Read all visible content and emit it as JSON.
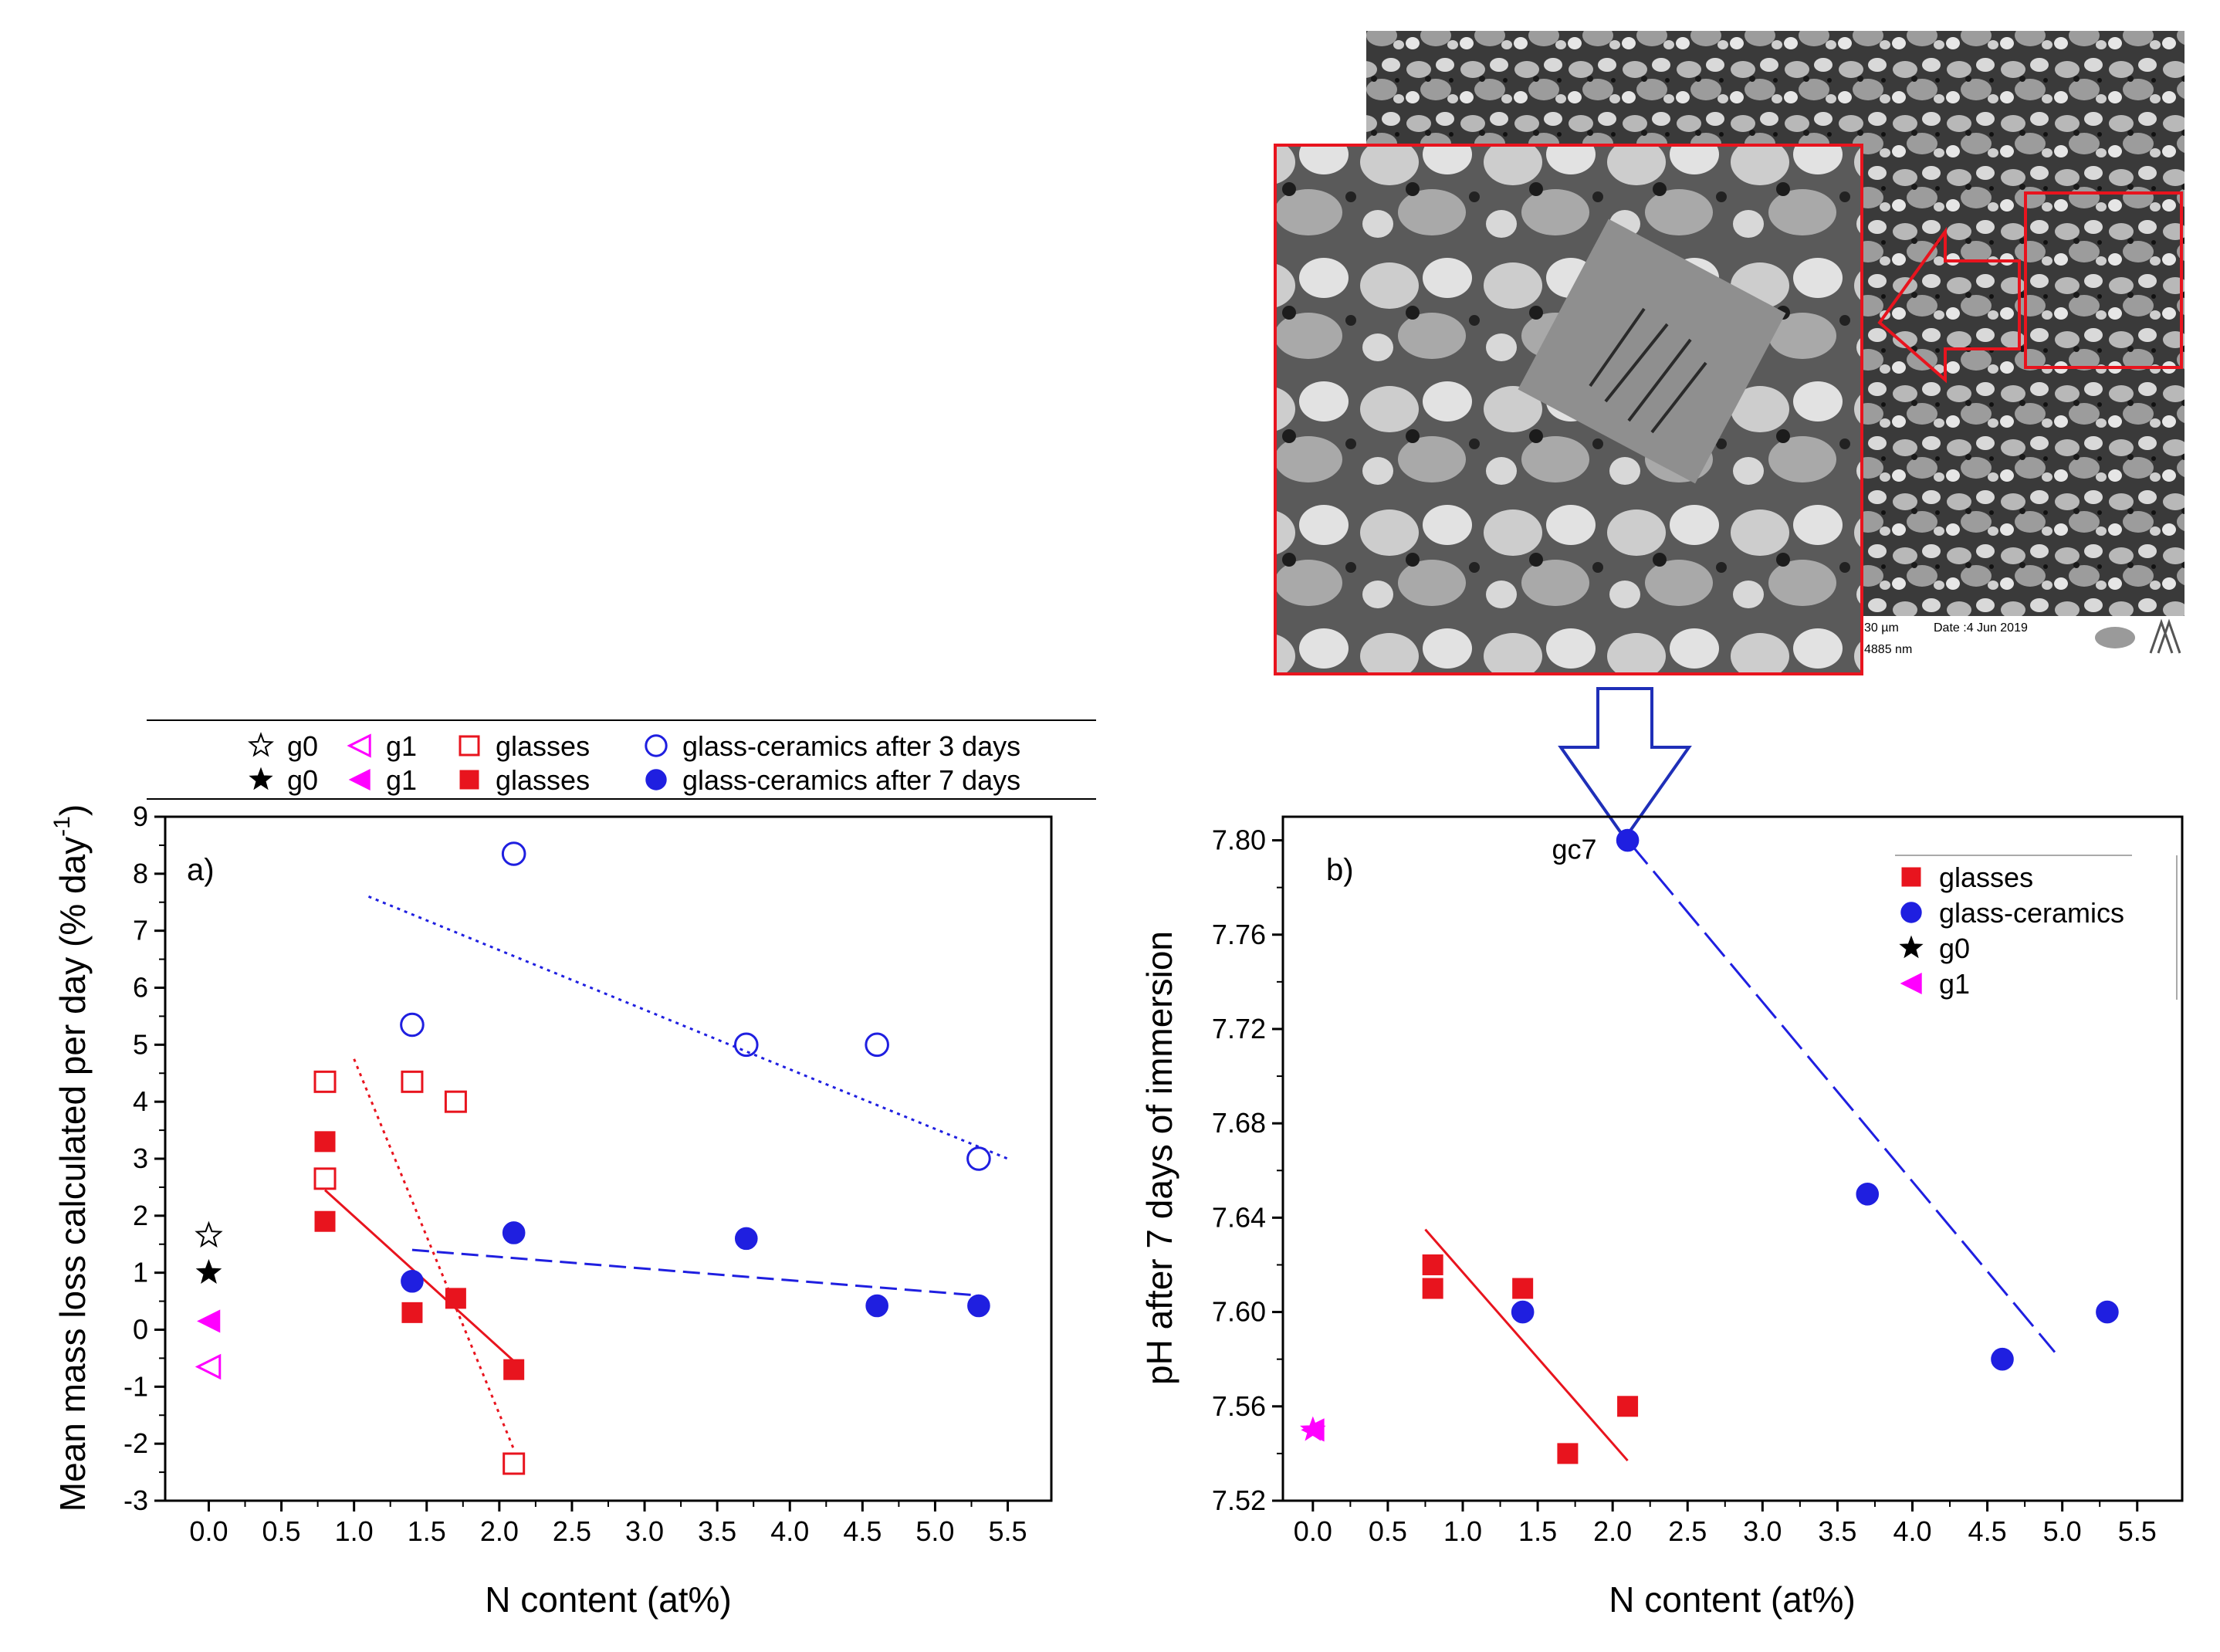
{
  "chart_data": [
    {
      "id": "a",
      "type": "scatter",
      "panel_label": "a)",
      "xlabel": "N content (at%)",
      "ylabel": "Mean mass loss calculated per day (% day",
      "ylabel_sup": "-1",
      "ylabel_close": ")",
      "xlim": [
        -0.3,
        5.8
      ],
      "ylim": [
        -3,
        9
      ],
      "x_ticks": [
        "0.0",
        "0.5",
        "1.0",
        "1.5",
        "2.0",
        "2.5",
        "3.0",
        "3.5",
        "4.0",
        "4.5",
        "5.0",
        "5.5"
      ],
      "x_tick_values": [
        0,
        0.5,
        1.0,
        1.5,
        2.0,
        2.5,
        3.0,
        3.5,
        4.0,
        4.5,
        5.0,
        5.5
      ],
      "y_ticks": [
        "-3",
        "-2",
        "-1",
        "0",
        "1",
        "2",
        "3",
        "4",
        "5",
        "6",
        "7",
        "8",
        "9"
      ],
      "y_tick_values": [
        -3,
        -2,
        -1,
        0,
        1,
        2,
        3,
        4,
        5,
        6,
        7,
        8,
        9
      ],
      "legend": {
        "placement": "top",
        "rows": [
          [
            {
              "marker": "star-open",
              "color": "#000000",
              "label": "g0"
            },
            {
              "marker": "triangle-left-open",
              "color": "#ff00ff",
              "label": "g1"
            },
            {
              "marker": "square-open",
              "color": "#e8141e",
              "label": "glasses"
            },
            {
              "marker": "circle-open",
              "color": "#1f1fe0",
              "label": "glass-ceramics after 3 days"
            }
          ],
          [
            {
              "marker": "star",
              "color": "#000000",
              "label": "g0"
            },
            {
              "marker": "triangle-left",
              "color": "#ff00ff",
              "label": "g1"
            },
            {
              "marker": "square",
              "color": "#e8141e",
              "label": "glasses"
            },
            {
              "marker": "circle",
              "color": "#1f1fe0",
              "label": "glass-ceramics after 7 days"
            }
          ]
        ]
      },
      "series": [
        {
          "name": "g0 (3 days)",
          "marker": "star-open",
          "color": "#000000",
          "points": [
            [
              0.0,
              1.65
            ]
          ]
        },
        {
          "name": "g0 (7 days)",
          "marker": "star",
          "color": "#000000",
          "points": [
            [
              0.0,
              1.0
            ]
          ]
        },
        {
          "name": "g1 (3 days)",
          "marker": "triangle-left-open",
          "color": "#ff00ff",
          "points": [
            [
              0.0,
              -0.65
            ]
          ]
        },
        {
          "name": "g1 (7 days)",
          "marker": "triangle-left",
          "color": "#ff00ff",
          "points": [
            [
              0.0,
              0.15
            ]
          ]
        },
        {
          "name": "glasses (3 days)",
          "marker": "square-open",
          "color": "#e8141e",
          "points": [
            [
              0.8,
              4.35
            ],
            [
              0.8,
              2.65
            ],
            [
              1.4,
              4.35
            ],
            [
              1.7,
              4.0
            ],
            [
              2.1,
              -2.35
            ]
          ]
        },
        {
          "name": "glasses (7 days)",
          "marker": "square",
          "color": "#e8141e",
          "points": [
            [
              0.8,
              3.3
            ],
            [
              0.8,
              1.9
            ],
            [
              1.4,
              0.3
            ],
            [
              1.7,
              0.55
            ],
            [
              2.1,
              -0.7
            ]
          ]
        },
        {
          "name": "glass-ceramics after 3 days",
          "marker": "circle-open",
          "color": "#1f1fe0",
          "points": [
            [
              1.4,
              5.35
            ],
            [
              2.1,
              8.35
            ],
            [
              3.7,
              5.0
            ],
            [
              4.6,
              5.0
            ],
            [
              5.3,
              3.0
            ]
          ]
        },
        {
          "name": "glass-ceramics after 7 days",
          "marker": "circle",
          "color": "#1f1fe0",
          "points": [
            [
              1.4,
              0.85
            ],
            [
              2.1,
              1.7
            ],
            [
              3.7,
              1.6
            ],
            [
              4.6,
              0.42
            ],
            [
              5.3,
              0.42
            ]
          ]
        }
      ],
      "fit_lines": [
        {
          "name": "fit glass-ceramics 3 days",
          "color": "#1f1fe0",
          "dash": "dotted",
          "from": [
            1.1,
            7.6
          ],
          "to": [
            5.5,
            3.0
          ]
        },
        {
          "name": "fit glasses 3 days",
          "color": "#e8141e",
          "dash": "dotted",
          "from": [
            1.0,
            4.75
          ],
          "to": [
            2.1,
            -2.1
          ]
        },
        {
          "name": "fit glasses 7 days",
          "color": "#e8141e",
          "dash": "solid",
          "from": [
            0.8,
            2.45
          ],
          "to": [
            2.1,
            -0.55
          ]
        },
        {
          "name": "fit glass-ceramics 7 days",
          "color": "#1f1fe0",
          "dash": "dashed",
          "from": [
            1.4,
            1.4
          ],
          "to": [
            5.3,
            0.6
          ]
        }
      ]
    },
    {
      "id": "b",
      "type": "scatter",
      "panel_label": "b)",
      "xlabel": "N content (at%)",
      "ylabel": "pH after 7 days of immersion",
      "xlim": [
        -0.2,
        5.8
      ],
      "ylim": [
        7.52,
        7.81
      ],
      "x_ticks": [
        "0.0",
        "0.5",
        "1.0",
        "1.5",
        "2.0",
        "2.5",
        "3.0",
        "3.5",
        "4.0",
        "4.5",
        "5.0",
        "5.5"
      ],
      "x_tick_values": [
        0,
        0.5,
        1.0,
        1.5,
        2.0,
        2.5,
        3.0,
        3.5,
        4.0,
        4.5,
        5.0,
        5.5
      ],
      "y_ticks": [
        "7.52",
        "7.56",
        "7.60",
        "7.64",
        "7.68",
        "7.72",
        "7.76",
        "7.80"
      ],
      "y_tick_values": [
        7.52,
        7.56,
        7.6,
        7.64,
        7.68,
        7.72,
        7.76,
        7.8
      ],
      "legend": {
        "placement": "top-right",
        "items": [
          {
            "marker": "square",
            "color": "#e8141e",
            "label": "glasses"
          },
          {
            "marker": "circle",
            "color": "#1f1fe0",
            "label": "glass-ceramics"
          },
          {
            "marker": "star",
            "color": "#000000",
            "label": "g0"
          },
          {
            "marker": "triangle-left",
            "color": "#ff00ff",
            "label": "g1"
          }
        ]
      },
      "annotation": {
        "text": "gc7",
        "x": 2.1,
        "y": 7.8
      },
      "series": [
        {
          "name": "glasses",
          "marker": "square",
          "color": "#e8141e",
          "points": [
            [
              0.8,
              7.62
            ],
            [
              0.8,
              7.61
            ],
            [
              1.4,
              7.61
            ],
            [
              1.7,
              7.54
            ],
            [
              2.1,
              7.56
            ]
          ]
        },
        {
          "name": "glass-ceramics",
          "marker": "circle",
          "color": "#1f1fe0",
          "points": [
            [
              1.4,
              7.6
            ],
            [
              2.1,
              7.8
            ],
            [
              3.7,
              7.65
            ],
            [
              4.6,
              7.58
            ],
            [
              5.3,
              7.6
            ]
          ]
        },
        {
          "name": "g1",
          "marker": "triangle-left",
          "color": "#ff00ff",
          "points": [
            [
              0.0,
              7.55
            ]
          ]
        },
        {
          "name": "g0",
          "marker": "star",
          "color": "#ff00ff",
          "points": [
            [
              0.0,
              7.55
            ]
          ]
        }
      ],
      "fit_lines": [
        {
          "name": "fit glasses",
          "color": "#e8141e",
          "dash": "solid",
          "from": [
            0.75,
            7.635
          ],
          "to": [
            2.1,
            7.537
          ]
        },
        {
          "name": "fit glass-ceramics",
          "color": "#1f1fe0",
          "dash": "longdash",
          "from": [
            2.1,
            7.8
          ],
          "to": [
            4.95,
            7.583
          ]
        }
      ]
    }
  ],
  "micrograph": {
    "caption_scale": "30 µm",
    "caption_date": "Date :4 Jun 2019",
    "caption_size": "4885 nm"
  }
}
